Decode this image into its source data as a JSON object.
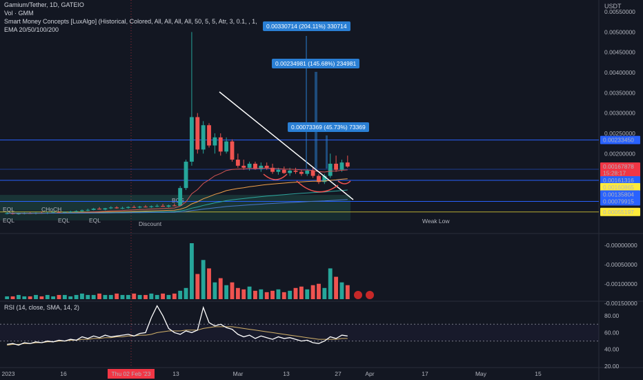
{
  "header": {
    "symbol": "Gamium/Tether, 1D, GATEIO",
    "indicators": [
      "Vol · GMM",
      "Smart Money Concepts [LuxAlgo] (Historical, Colored, All, All, All, All, 50, 5, 5, Atr, 3, 0.1, , 1,",
      "EMA 20/50/100/200"
    ],
    "rsi_label": "RSI (14, close, SMA, 14, 2)"
  },
  "price_axis": {
    "currency": "USDT",
    "ticks": [
      "0.00550000",
      "0.00500000",
      "0.00450000",
      "0.00400000",
      "0.00350000",
      "0.00300000",
      "0.00250000",
      "0.00200000"
    ],
    "tags": [
      {
        "label": "0.00233450",
        "bg": "#2962ff",
        "fg": "#ffffff",
        "price": 0.0023345
      },
      {
        "label": "0.00167878",
        "bg": "#f23645",
        "fg": "#ffffff",
        "price": 0.00167878
      },
      {
        "label": "15:28:17",
        "bg": "#f23645",
        "fg": "#ffffff",
        "price": 0.00152
      },
      {
        "label": "0.00161316",
        "bg": "#2962ff",
        "fg": "#ffffff",
        "price": 0.00134
      },
      {
        "label": "0.00160865",
        "bg": "#ffeb3b",
        "fg": "#000000",
        "price": 0.00117
      },
      {
        "label": "0.00135804",
        "bg": "#2962ff",
        "fg": "#ffffff",
        "price": 0.00099
      },
      {
        "label": "0.00079915",
        "bg": "#2962ff",
        "fg": "#ffffff",
        "price": 0.00082
      },
      {
        "label": "0.00055197",
        "bg": "#ffeb3b",
        "fg": "#000000",
        "price": 0.00056
      }
    ]
  },
  "volume_axis": {
    "ticks": [
      "-0.00000000",
      "-0.00050000",
      "-0.00100000",
      "-0.00150000"
    ]
  },
  "rsi_axis": {
    "ticks": [
      "80.00",
      "60.00",
      "40.00",
      "20.00"
    ]
  },
  "time_axis": {
    "labels": [
      "2023",
      "16",
      "Thu 02 Feb '23",
      "13",
      "Mar",
      "13",
      "27",
      "Apr",
      "17",
      "May",
      "15"
    ],
    "highlight": "Thu 02 Feb '23"
  },
  "annotations": {
    "box1": "0.00330714 (204.11%) 330714",
    "box2": "0.00234981 (145.68%) 234981",
    "box3": "0.00073369 (45.73%) 73369",
    "discount": "Discount",
    "weak_low": "Weak Low",
    "eql": "EQL",
    "choch": "CHoCH",
    "bos": "BOS"
  },
  "colors": {
    "up": "#26a69a",
    "down": "#ef5350",
    "blue_line": "#2962ff",
    "ema": "#f0a04b",
    "rsi": "#ffffff",
    "rsi_ma": "#d4b36a"
  },
  "chart_data": {
    "type": "candlestick",
    "title": "Gamium/Tether, 1D, GATEIO",
    "candles": [
      {
        "o": 0.00052,
        "h": 0.00056,
        "l": 0.0005,
        "c": 0.00053
      },
      {
        "o": 0.00053,
        "h": 0.00055,
        "l": 0.0005,
        "c": 0.00051
      },
      {
        "o": 0.00051,
        "h": 0.00054,
        "l": 0.00049,
        "c": 0.00052
      },
      {
        "o": 0.00052,
        "h": 0.00055,
        "l": 0.0005,
        "c": 0.00053
      },
      {
        "o": 0.00053,
        "h": 0.00056,
        "l": 0.00051,
        "c": 0.00052
      },
      {
        "o": 0.00052,
        "h": 0.00055,
        "l": 0.0005,
        "c": 0.00054
      },
      {
        "o": 0.00054,
        "h": 0.00057,
        "l": 0.00052,
        "c": 0.00053
      },
      {
        "o": 0.00053,
        "h": 0.00056,
        "l": 0.00051,
        "c": 0.00054
      },
      {
        "o": 0.00054,
        "h": 0.00058,
        "l": 0.00052,
        "c": 0.00055
      },
      {
        "o": 0.00055,
        "h": 0.00058,
        "l": 0.00053,
        "c": 0.00054
      },
      {
        "o": 0.00054,
        "h": 0.00057,
        "l": 0.00052,
        "c": 0.00056
      },
      {
        "o": 0.00056,
        "h": 0.00059,
        "l": 0.00054,
        "c": 0.00057
      },
      {
        "o": 0.00057,
        "h": 0.0006,
        "l": 0.00055,
        "c": 0.00058
      },
      {
        "o": 0.00058,
        "h": 0.00062,
        "l": 0.00056,
        "c": 0.0006
      },
      {
        "o": 0.0006,
        "h": 0.00064,
        "l": 0.00058,
        "c": 0.00061
      },
      {
        "o": 0.00061,
        "h": 0.00066,
        "l": 0.0006,
        "c": 0.00064
      },
      {
        "o": 0.00064,
        "h": 0.00068,
        "l": 0.00062,
        "c": 0.00062
      },
      {
        "o": 0.00062,
        "h": 0.00066,
        "l": 0.0006,
        "c": 0.00065
      },
      {
        "o": 0.00065,
        "h": 0.0007,
        "l": 0.00063,
        "c": 0.00067
      },
      {
        "o": 0.00067,
        "h": 0.0007,
        "l": 0.00064,
        "c": 0.00065
      },
      {
        "o": 0.00065,
        "h": 0.00069,
        "l": 0.00063,
        "c": 0.00066
      },
      {
        "o": 0.00066,
        "h": 0.0007,
        "l": 0.00064,
        "c": 0.00068
      },
      {
        "o": 0.00068,
        "h": 0.00072,
        "l": 0.00066,
        "c": 0.00067
      },
      {
        "o": 0.00067,
        "h": 0.00071,
        "l": 0.00065,
        "c": 0.00069
      },
      {
        "o": 0.00069,
        "h": 0.00073,
        "l": 0.00067,
        "c": 0.00068
      },
      {
        "o": 0.00068,
        "h": 0.00072,
        "l": 0.00066,
        "c": 0.0007
      },
      {
        "o": 0.0007,
        "h": 0.00075,
        "l": 0.00068,
        "c": 0.00071
      },
      {
        "o": 0.00071,
        "h": 0.00076,
        "l": 0.00069,
        "c": 0.00069
      },
      {
        "o": 0.00069,
        "h": 0.00074,
        "l": 0.00067,
        "c": 0.00072
      },
      {
        "o": 0.00072,
        "h": 0.00077,
        "l": 0.0007,
        "c": 0.00071
      },
      {
        "o": 0.00071,
        "h": 0.0012,
        "l": 0.0007,
        "c": 0.00115
      },
      {
        "o": 0.00115,
        "h": 0.00185,
        "l": 0.0011,
        "c": 0.0018
      },
      {
        "o": 0.0018,
        "h": 0.005,
        "l": 0.0017,
        "c": 0.0029
      },
      {
        "o": 0.0029,
        "h": 0.003,
        "l": 0.002,
        "c": 0.0021
      },
      {
        "o": 0.0021,
        "h": 0.0028,
        "l": 0.002,
        "c": 0.0027
      },
      {
        "o": 0.0027,
        "h": 0.00275,
        "l": 0.00215,
        "c": 0.0022
      },
      {
        "o": 0.0022,
        "h": 0.0025,
        "l": 0.002,
        "c": 0.0024
      },
      {
        "o": 0.0024,
        "h": 0.0025,
        "l": 0.00195,
        "c": 0.00205
      },
      {
        "o": 0.00205,
        "h": 0.0024,
        "l": 0.002,
        "c": 0.0023
      },
      {
        "o": 0.0023,
        "h": 0.00235,
        "l": 0.0018,
        "c": 0.00185
      },
      {
        "o": 0.00185,
        "h": 0.002,
        "l": 0.00165,
        "c": 0.0017
      },
      {
        "o": 0.0017,
        "h": 0.00185,
        "l": 0.0016,
        "c": 0.00165
      },
      {
        "o": 0.00165,
        "h": 0.0018,
        "l": 0.00158,
        "c": 0.00175
      },
      {
        "o": 0.00175,
        "h": 0.0018,
        "l": 0.0016,
        "c": 0.00162
      },
      {
        "o": 0.00162,
        "h": 0.00178,
        "l": 0.00155,
        "c": 0.0017
      },
      {
        "o": 0.0017,
        "h": 0.00178,
        "l": 0.0016,
        "c": 0.00165
      },
      {
        "o": 0.00165,
        "h": 0.00175,
        "l": 0.0015,
        "c": 0.00155
      },
      {
        "o": 0.00155,
        "h": 0.00165,
        "l": 0.00148,
        "c": 0.0016
      },
      {
        "o": 0.0016,
        "h": 0.00168,
        "l": 0.0015,
        "c": 0.00152
      },
      {
        "o": 0.00152,
        "h": 0.00165,
        "l": 0.00145,
        "c": 0.00158
      },
      {
        "o": 0.00158,
        "h": 0.00165,
        "l": 0.0015,
        "c": 0.00155
      },
      {
        "o": 0.00155,
        "h": 0.0016,
        "l": 0.00145,
        "c": 0.0015
      },
      {
        "o": 0.0015,
        "h": 0.00162,
        "l": 0.00145,
        "c": 0.00158
      },
      {
        "o": 0.00158,
        "h": 0.00165,
        "l": 0.0014,
        "c": 0.00145
      },
      {
        "o": 0.00145,
        "h": 0.0015,
        "l": 0.00125,
        "c": 0.0013
      },
      {
        "o": 0.0013,
        "h": 0.0015,
        "l": 0.00125,
        "c": 0.00145
      },
      {
        "o": 0.00145,
        "h": 0.002,
        "l": 0.0014,
        "c": 0.00175
      },
      {
        "o": 0.00175,
        "h": 0.00195,
        "l": 0.00155,
        "c": 0.0016
      },
      {
        "o": 0.0016,
        "h": 0.00185,
        "l": 0.00155,
        "c": 0.00178
      },
      {
        "o": 0.00178,
        "h": 0.00195,
        "l": 0.00165,
        "c": 0.00168
      }
    ],
    "volume": [
      2,
      2,
      3,
      2,
      2,
      3,
      2,
      3,
      2,
      3,
      3,
      2,
      3,
      4,
      3,
      3,
      4,
      3,
      3,
      4,
      3,
      3,
      4,
      3,
      3,
      4,
      3,
      4,
      3,
      4,
      6,
      8,
      40,
      18,
      28,
      22,
      12,
      15,
      10,
      12,
      8,
      7,
      9,
      6,
      7,
      5,
      6,
      7,
      5,
      6,
      8,
      9,
      7,
      10,
      11,
      8,
      22,
      16,
      12,
      10
    ],
    "rsi": [
      46,
      47,
      45,
      48,
      47,
      49,
      48,
      50,
      49,
      51,
      50,
      52,
      51,
      55,
      53,
      56,
      54,
      57,
      55,
      56,
      57,
      58,
      56,
      59,
      60,
      78,
      92,
      80,
      65,
      60,
      58,
      62,
      60,
      63,
      90,
      72,
      68,
      70,
      66,
      64,
      58,
      55,
      57,
      53,
      56,
      54,
      52,
      55,
      53,
      54,
      52,
      50,
      51,
      48,
      47,
      50,
      55,
      53,
      57,
      56
    ],
    "rsi_ma": [
      45,
      46,
      46,
      47,
      47,
      48,
      48,
      49,
      49,
      50,
      50,
      51,
      51,
      52,
      52,
      53,
      53,
      54,
      54,
      55,
      55,
      56,
      56,
      57,
      57,
      58,
      60,
      61,
      62,
      62,
      62,
      63,
      63,
      63,
      65,
      66,
      67,
      67,
      67,
      67,
      66,
      65,
      64,
      63,
      62,
      61,
      60,
      59,
      58,
      57,
      56,
      55,
      54,
      53,
      52,
      52,
      52,
      52,
      53,
      53
    ]
  }
}
